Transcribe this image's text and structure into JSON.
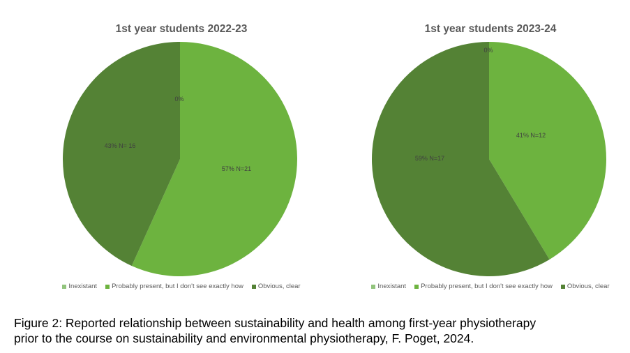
{
  "chart_data": [
    {
      "type": "pie",
      "title": "1st year students 2022-23",
      "slices": [
        {
          "label": "Inexistant",
          "value": 0,
          "data_label": "0%",
          "color": "#92c47d"
        },
        {
          "label": "Probably present, but I don't see exactly how",
          "value": 21,
          "data_label": "57% N=21",
          "color": "#6db33f"
        },
        {
          "label": "Obvious, clear",
          "value": 16,
          "data_label": "43% N= 16",
          "color": "#548235"
        }
      ],
      "legend": "bottom"
    },
    {
      "type": "pie",
      "title": "1st year students 2023-24",
      "slices": [
        {
          "label": "Inexistant",
          "value": 0,
          "data_label": "0%",
          "color": "#92c47d"
        },
        {
          "label": "Probably present, but I don't see exactly how",
          "value": 12,
          "data_label": "41% N=12",
          "color": "#6db33f"
        },
        {
          "label": "Obvious, clear",
          "value": 17,
          "data_label": "59% N=17",
          "color": "#548235"
        }
      ],
      "legend": "bottom"
    }
  ],
  "caption": {
    "line1": "Figure 2: Reported relationship between sustainability and health among first-year physiotherapy",
    "line2": "prior to the course on sustainability and environmental physiotherapy, F. Poget, 2024."
  }
}
